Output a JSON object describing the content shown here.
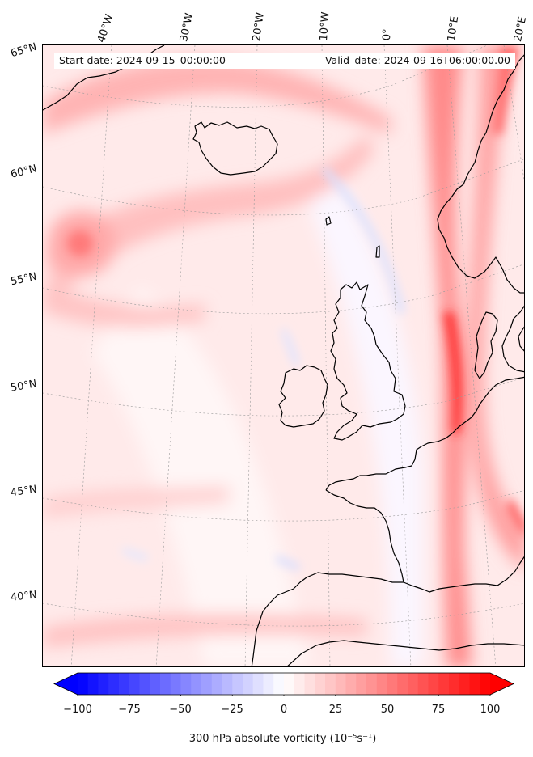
{
  "map": {
    "start_date": "Start date: 2024-09-15_00:00:00",
    "valid_date": "Valid_date: 2024-09-16T06:00:00.00",
    "lon_labels": [
      "40°W",
      "30°W",
      "20°W",
      "10°W",
      "0°",
      "10°E",
      "20°E"
    ],
    "lat_labels": [
      "65°N",
      "60°N",
      "55°N",
      "50°N",
      "45°N",
      "40°N"
    ],
    "field": "300 hPa absolute vorticity",
    "coastline_color": "#000000",
    "gridline_color": "#9a9a9a"
  },
  "colorbar": {
    "label": "300 hPa absolute vorticity (10⁻⁵s⁻¹)",
    "min": -100,
    "max": 100,
    "step": 5,
    "low_color": "#0000ff",
    "mid_color": "#ffffff",
    "high_color": "#ff0000",
    "extend": "both",
    "ticks": [
      "−100",
      "−75",
      "−50",
      "−25",
      "0",
      "25",
      "50",
      "75",
      "100"
    ]
  }
}
